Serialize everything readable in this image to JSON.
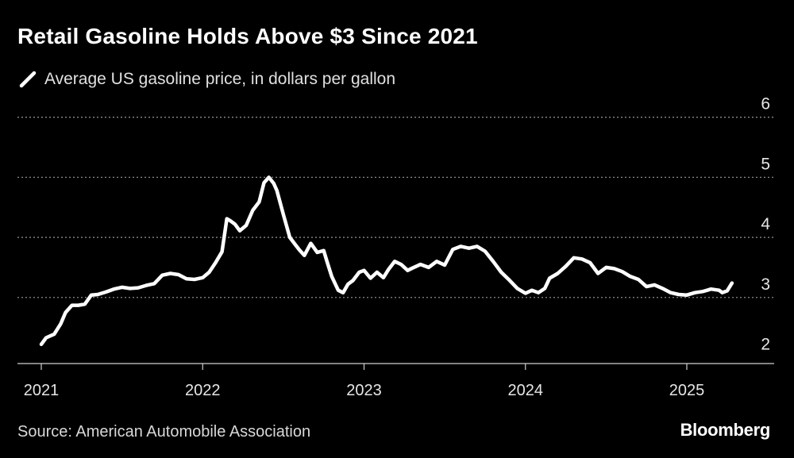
{
  "header": {
    "title": "Retail Gasoline Holds Above $3 Since 2021"
  },
  "legend": {
    "label": "Average US gasoline price, in dollars per gallon"
  },
  "footer": {
    "source": "Source: American Automobile Association",
    "brand": "Bloomberg"
  },
  "colors": {
    "background": "#000000",
    "line": "#ffffff",
    "grid": "#8a8a8a",
    "text": "#ffffff"
  },
  "chart_data": {
    "type": "line",
    "title": "Retail Gasoline Holds Above $3 Since 2021",
    "subtitle": "Average US gasoline price, in dollars per gallon",
    "xlabel": "",
    "ylabel": "",
    "xlim": [
      2021.0,
      2025.59
    ],
    "ylim": [
      1.9,
      6.3
    ],
    "x_ticks": [
      {
        "value": 2021,
        "label": "2021"
      },
      {
        "value": 2022,
        "label": "2022"
      },
      {
        "value": 2023,
        "label": "2023"
      },
      {
        "value": 2024,
        "label": "2024"
      },
      {
        "value": 2025,
        "label": "2025"
      }
    ],
    "y_ticks": [
      {
        "value": 2,
        "label": "2"
      },
      {
        "value": 3,
        "label": "3"
      },
      {
        "value": 4,
        "label": "4"
      },
      {
        "value": 5,
        "label": "5"
      },
      {
        "value": 6,
        "label": "6"
      }
    ],
    "grid": "horizontal dotted",
    "legend_position": "top-left",
    "series": [
      {
        "name": "Average US gasoline price, in dollars per gallon",
        "x": [
          2021.0,
          2021.03,
          2021.08,
          2021.12,
          2021.15,
          2021.19,
          2021.23,
          2021.27,
          2021.31,
          2021.35,
          2021.4,
          2021.45,
          2021.5,
          2021.55,
          2021.6,
          2021.65,
          2021.7,
          2021.75,
          2021.8,
          2021.85,
          2021.9,
          2021.95,
          2022.0,
          2022.04,
          2022.08,
          2022.12,
          2022.15,
          2022.17,
          2022.2,
          2022.23,
          2022.27,
          2022.31,
          2022.35,
          2022.38,
          2022.41,
          2022.44,
          2022.46,
          2022.5,
          2022.54,
          2022.58,
          2022.6,
          2022.63,
          2022.67,
          2022.71,
          2022.75,
          2022.77,
          2022.8,
          2022.84,
          2022.87,
          2022.9,
          2022.93,
          2022.97,
          2023.0,
          2023.04,
          2023.08,
          2023.12,
          2023.15,
          2023.19,
          2023.23,
          2023.27,
          2023.3,
          2023.35,
          2023.4,
          2023.45,
          2023.5,
          2023.55,
          2023.6,
          2023.65,
          2023.7,
          2023.75,
          2023.8,
          2023.85,
          2023.9,
          2023.95,
          2024.0,
          2024.04,
          2024.08,
          2024.12,
          2024.15,
          2024.2,
          2024.25,
          2024.3,
          2024.35,
          2024.4,
          2024.45,
          2024.5,
          2024.55,
          2024.6,
          2024.65,
          2024.7,
          2024.75,
          2024.8,
          2024.85,
          2024.9,
          2024.95,
          2025.0,
          2025.05,
          2025.1,
          2025.15,
          2025.2,
          2025.22,
          2025.25,
          2025.28
        ],
        "values": [
          2.22,
          2.33,
          2.39,
          2.56,
          2.75,
          2.87,
          2.87,
          2.89,
          3.04,
          3.05,
          3.09,
          3.14,
          3.17,
          3.15,
          3.16,
          3.2,
          3.23,
          3.37,
          3.4,
          3.38,
          3.31,
          3.3,
          3.33,
          3.42,
          3.58,
          3.76,
          4.31,
          4.28,
          4.22,
          4.11,
          4.2,
          4.45,
          4.59,
          4.91,
          5.0,
          4.9,
          4.78,
          4.38,
          4.0,
          3.86,
          3.79,
          3.7,
          3.9,
          3.75,
          3.78,
          3.6,
          3.35,
          3.12,
          3.08,
          3.22,
          3.28,
          3.42,
          3.45,
          3.32,
          3.42,
          3.33,
          3.46,
          3.6,
          3.55,
          3.45,
          3.49,
          3.55,
          3.5,
          3.6,
          3.54,
          3.8,
          3.85,
          3.82,
          3.85,
          3.77,
          3.6,
          3.42,
          3.29,
          3.15,
          3.07,
          3.12,
          3.08,
          3.15,
          3.32,
          3.4,
          3.52,
          3.66,
          3.64,
          3.58,
          3.4,
          3.5,
          3.48,
          3.43,
          3.35,
          3.3,
          3.18,
          3.21,
          3.15,
          3.08,
          3.05,
          3.04,
          3.08,
          3.1,
          3.14,
          3.12,
          3.08,
          3.11,
          3.24
        ]
      }
    ]
  }
}
